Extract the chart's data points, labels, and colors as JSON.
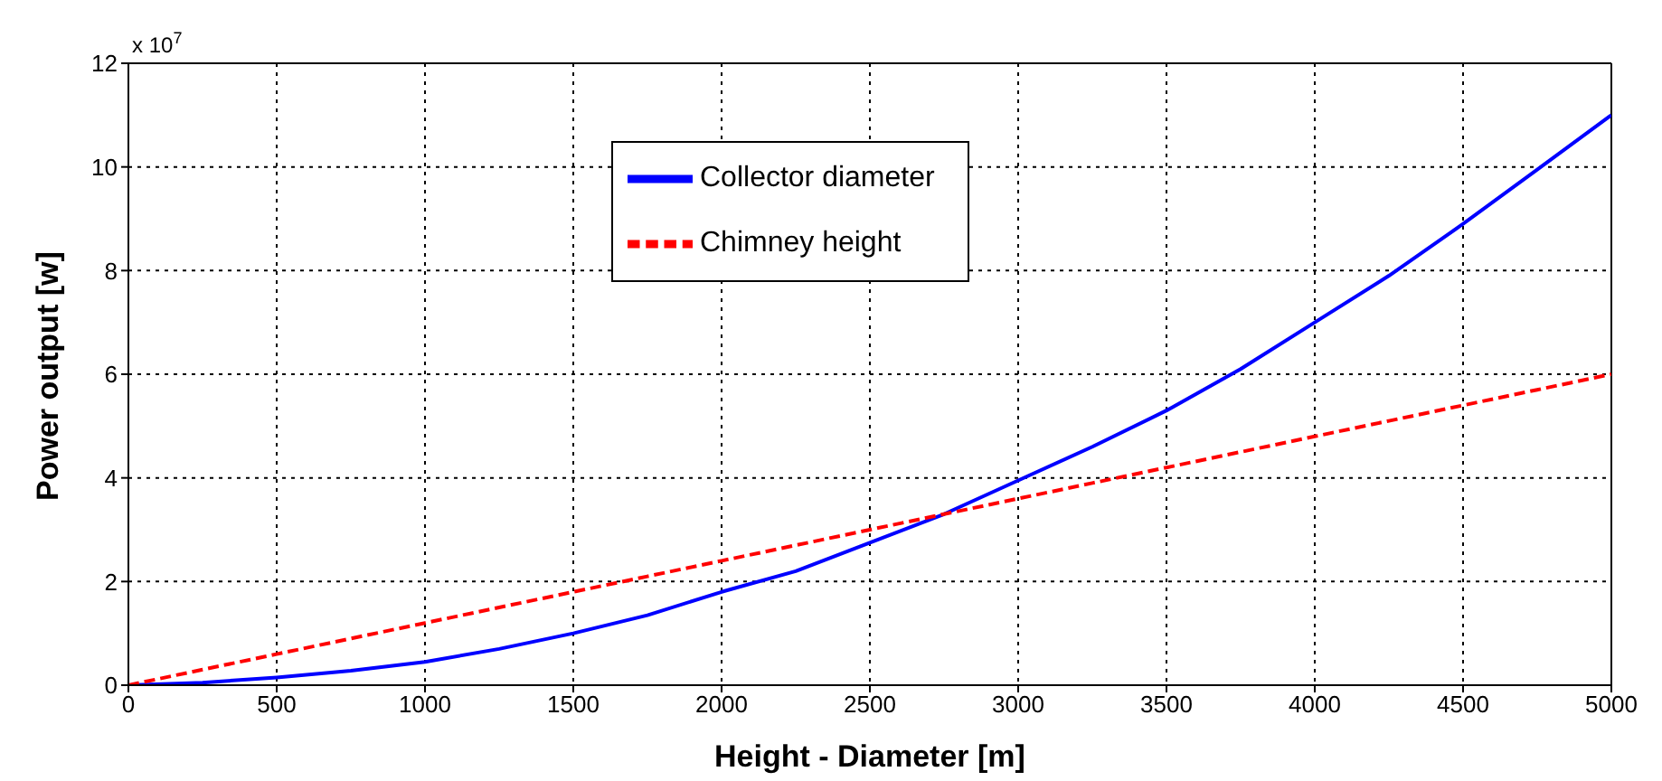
{
  "chart_data": {
    "type": "line",
    "xlabel": "Height - Diameter [m]",
    "ylabel": "Power output [w]",
    "annotations": [
      "x 10$^{7}$"
    ],
    "x": [
      0,
      250,
      500,
      750,
      1000,
      1250,
      1500,
      1750,
      2000,
      2250,
      2500,
      2750,
      3000,
      3250,
      3500,
      3750,
      4000,
      4250,
      4500,
      4750,
      5000
    ],
    "series": [
      {
        "name": "Collector diameter",
        "color": "#0000ff",
        "line_style": "solid",
        "values": [
          0,
          0.05,
          0.15,
          0.28,
          0.45,
          0.7,
          1.0,
          1.35,
          1.8,
          2.2,
          2.75,
          3.3,
          3.95,
          4.6,
          5.3,
          6.1,
          7.0,
          7.9,
          8.9,
          9.95,
          11.0
        ]
      },
      {
        "name": "Chimney height",
        "color": "#ff0000",
        "line_style": "dashed",
        "values": [
          0,
          0.3,
          0.6,
          0.9,
          1.2,
          1.5,
          1.8,
          2.1,
          2.4,
          2.7,
          3.0,
          3.3,
          3.6,
          3.9,
          4.2,
          4.5,
          4.8,
          5.1,
          5.4,
          5.7,
          6.0
        ]
      }
    ],
    "xlim": [
      0,
      5000
    ],
    "xticks": [
      0,
      500,
      1000,
      1500,
      2000,
      2500,
      3000,
      3500,
      4000,
      4500,
      5000
    ],
    "ylim": [
      0,
      12
    ],
    "yticks": [
      0,
      2,
      4,
      6,
      8,
      10,
      12
    ],
    "grid": true,
    "legend": "top",
    "marker": "none"
  }
}
